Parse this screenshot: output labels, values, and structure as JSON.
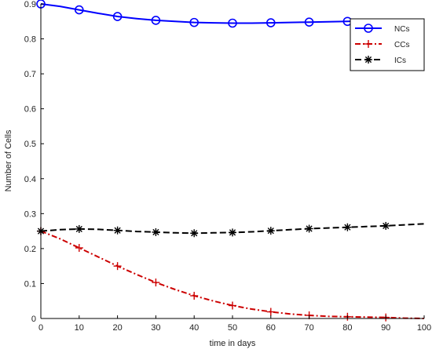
{
  "chart_data": {
    "type": "line",
    "xlabel": "time in days",
    "ylabel": "Number of Cells",
    "xlim": [
      0,
      100
    ],
    "ylim": [
      0,
      0.9
    ],
    "xticks": [
      "0",
      "10",
      "20",
      "30",
      "40",
      "50",
      "60",
      "70",
      "80",
      "90",
      "100"
    ],
    "yticks": [
      "0",
      "0.1",
      "0.2",
      "0.3",
      "0.4",
      "0.5",
      "0.6",
      "0.7",
      "0.8",
      "0.9"
    ],
    "grid": false,
    "legend_position": "top-right",
    "series": [
      {
        "name": "NCs",
        "color": "#0000ff",
        "line_style": "solid",
        "marker": "circle",
        "x": [
          0,
          5,
          10,
          15,
          20,
          25,
          30,
          35,
          40,
          45,
          50,
          55,
          60,
          65,
          70,
          75,
          80,
          85,
          90,
          95,
          100
        ],
        "y": [
          0.9,
          0.893,
          0.883,
          0.873,
          0.864,
          0.858,
          0.853,
          0.85,
          0.847,
          0.846,
          0.845,
          0.845,
          0.846,
          0.847,
          0.848,
          0.849,
          0.85,
          0.851,
          0.852,
          0.852,
          0.853
        ],
        "marker_x": [
          0,
          10,
          20,
          30,
          40,
          50,
          60,
          70,
          80
        ]
      },
      {
        "name": "CCs",
        "color": "#cc0000",
        "line_style": "dash-dot",
        "marker": "plus",
        "x": [
          0,
          5,
          10,
          15,
          20,
          25,
          30,
          35,
          40,
          45,
          50,
          55,
          60,
          65,
          70,
          75,
          80,
          85,
          90,
          95,
          100
        ],
        "y": [
          0.25,
          0.228,
          0.202,
          0.176,
          0.15,
          0.126,
          0.103,
          0.083,
          0.065,
          0.05,
          0.037,
          0.027,
          0.019,
          0.013,
          0.009,
          0.006,
          0.005,
          0.004,
          0.003,
          0.001,
          0.0
        ],
        "marker_x": [
          0,
          10,
          20,
          30,
          40,
          50,
          60,
          70,
          80,
          90
        ]
      },
      {
        "name": "ICs",
        "color": "#000000",
        "line_style": "dashed",
        "marker": "asterisk",
        "x": [
          0,
          5,
          10,
          15,
          20,
          25,
          30,
          35,
          40,
          45,
          50,
          55,
          60,
          65,
          70,
          75,
          80,
          85,
          90,
          95,
          100
        ],
        "y": [
          0.25,
          0.254,
          0.256,
          0.255,
          0.252,
          0.249,
          0.247,
          0.245,
          0.244,
          0.245,
          0.246,
          0.248,
          0.251,
          0.254,
          0.257,
          0.259,
          0.261,
          0.263,
          0.265,
          0.268,
          0.271
        ],
        "marker_x": [
          0,
          10,
          20,
          30,
          40,
          50,
          60,
          70,
          80,
          90
        ]
      }
    ]
  }
}
